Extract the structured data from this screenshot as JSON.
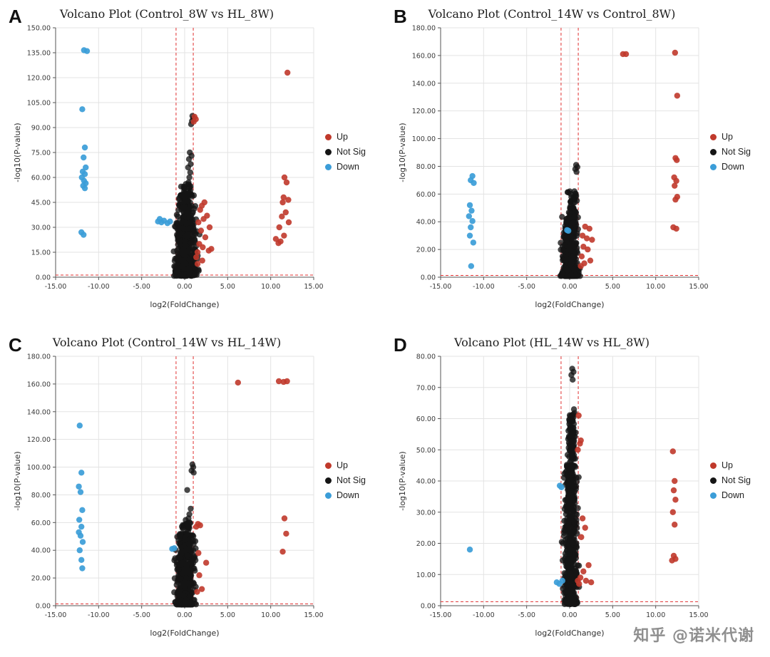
{
  "watermark": {
    "text": "知乎 @诺米代谢"
  },
  "colors": {
    "up": "#c0392b",
    "not_sig": "#151515",
    "down": "#3b9dd8",
    "threshold": "#e03131",
    "grid": "#e3e3e3",
    "axis": "#555555"
  },
  "legend": {
    "items": [
      {
        "label": "Up",
        "color": "#c0392b"
      },
      {
        "label": "Not Sig",
        "color": "#151515"
      },
      {
        "label": "Down",
        "color": "#3b9dd8"
      }
    ]
  },
  "chart_data": {
    "type": "scatter",
    "note": "four volcano plots, see panels"
  },
  "panels": [
    {
      "id": "A",
      "title": "Volcano Plot (Control_8W vs HL_8W)",
      "xlabel": "log2(FoldChange)",
      "ylabel": "-log10(P-value)",
      "xlim": [
        -15,
        15
      ],
      "ylim": [
        0,
        150
      ],
      "xticks": [
        "-15.00",
        "-10.00",
        "-5.00",
        "0.00",
        "5.00",
        "10.00",
        "15.00"
      ],
      "yticks": [
        "0.00",
        "15.00",
        "30.00",
        "45.00",
        "60.00",
        "75.00",
        "90.00",
        "105.00",
        "120.00",
        "135.00",
        "150.00"
      ],
      "thresholds": {
        "x": [
          -1,
          1
        ],
        "y": 1.3
      },
      "points": {
        "down": [
          [
            -11.7,
            136.5
          ],
          [
            -11.35,
            136
          ],
          [
            -11.9,
            101
          ],
          [
            -11.6,
            78
          ],
          [
            -11.75,
            72
          ],
          [
            -11.5,
            66
          ],
          [
            -11.85,
            63.5
          ],
          [
            -11.6,
            62
          ],
          [
            -11.95,
            60
          ],
          [
            -11.7,
            58
          ],
          [
            -11.5,
            56.5
          ],
          [
            -11.8,
            55
          ],
          [
            -11.6,
            53.5
          ],
          [
            -12.0,
            27
          ],
          [
            -11.75,
            25.5
          ],
          [
            -3.1,
            33.5
          ],
          [
            -2.7,
            33
          ],
          [
            -2.4,
            34
          ],
          [
            -2.0,
            32.5
          ],
          [
            -1.7,
            33.5
          ],
          [
            -2.9,
            35
          ]
        ],
        "up": [
          [
            11.95,
            123
          ],
          [
            11.6,
            60
          ],
          [
            11.85,
            57
          ],
          [
            11.5,
            48
          ],
          [
            12.05,
            46.5
          ],
          [
            11.4,
            45
          ],
          [
            11.75,
            39
          ],
          [
            11.3,
            36.5
          ],
          [
            12.1,
            33
          ],
          [
            11.0,
            30
          ],
          [
            11.55,
            25
          ],
          [
            10.6,
            23
          ],
          [
            11.15,
            21.5
          ],
          [
            10.9,
            20.5
          ],
          [
            1.15,
            96.5
          ],
          [
            1.3,
            95
          ],
          [
            1.05,
            93.5
          ],
          [
            2.3,
            45
          ],
          [
            2.0,
            43
          ],
          [
            1.8,
            40.5
          ],
          [
            2.6,
            37
          ],
          [
            2.2,
            35
          ],
          [
            1.6,
            33
          ],
          [
            2.9,
            30
          ],
          [
            1.9,
            28
          ],
          [
            2.4,
            24
          ],
          [
            1.7,
            20
          ],
          [
            2.1,
            18
          ],
          [
            2.8,
            16
          ],
          [
            1.5,
            15
          ],
          [
            3.1,
            17
          ],
          [
            1.35,
            12
          ],
          [
            2.05,
            10
          ],
          [
            1.5,
            8
          ]
        ],
        "not_sig": [
          [
            0.9,
            97
          ],
          [
            1.0,
            95.5
          ],
          [
            0.85,
            94
          ],
          [
            0.75,
            92
          ],
          [
            0.6,
            75
          ],
          [
            0.8,
            73
          ],
          [
            0.5,
            71
          ],
          [
            0.7,
            68
          ],
          [
            0.4,
            66
          ],
          [
            0.65,
            63
          ],
          [
            0.55,
            60
          ],
          [
            0.45,
            57
          ],
          [
            0.6,
            54
          ],
          [
            0.5,
            52
          ],
          [
            0.35,
            50
          ]
        ]
      },
      "clusters": [
        {
          "series": "not_sig",
          "count": 520,
          "x": [
            -1.7,
            2.0
          ],
          "y": [
            0.8,
            50
          ],
          "bias": 1.9,
          "seed": 101
        },
        {
          "series": "not_sig",
          "count": 70,
          "x": [
            -0.8,
            1.2
          ],
          "y": [
            28,
            56
          ],
          "bias": 1.2,
          "seed": 102
        }
      ]
    },
    {
      "id": "B",
      "title": "Volcano Plot (Control_14W vs Control_8W)",
      "xlabel": "log2(FoldChange)",
      "ylabel": "-log10(P-value)",
      "xlim": [
        -15,
        15
      ],
      "ylim": [
        0,
        180
      ],
      "xticks": [
        "-15.00",
        "-10.00",
        "-5.00",
        "0.00",
        "5.00",
        "10.00",
        "15.00"
      ],
      "yticks": [
        "0.00",
        "20.00",
        "40.00",
        "60.00",
        "80.00",
        "100.00",
        "120.00",
        "140.00",
        "160.00",
        "180.00"
      ],
      "thresholds": {
        "x": [
          -1,
          1
        ],
        "y": 1.3
      },
      "points": {
        "down": [
          [
            -11.3,
            73
          ],
          [
            -11.5,
            70
          ],
          [
            -11.15,
            68
          ],
          [
            -11.6,
            52
          ],
          [
            -11.4,
            48
          ],
          [
            -11.7,
            44
          ],
          [
            -11.3,
            40.5
          ],
          [
            -11.5,
            36
          ],
          [
            -11.6,
            30
          ],
          [
            -11.2,
            25
          ],
          [
            -11.45,
            8
          ],
          [
            -0.3,
            34
          ],
          [
            -0.15,
            33.5
          ]
        ],
        "up": [
          [
            6.2,
            161
          ],
          [
            6.55,
            161
          ],
          [
            12.25,
            162
          ],
          [
            12.5,
            131
          ],
          [
            12.3,
            86
          ],
          [
            12.45,
            84.5
          ],
          [
            12.15,
            72
          ],
          [
            12.4,
            69.5
          ],
          [
            12.2,
            66
          ],
          [
            12.5,
            58
          ],
          [
            12.3,
            56
          ],
          [
            12.05,
            36
          ],
          [
            12.4,
            35
          ],
          [
            1.8,
            36.5
          ],
          [
            2.3,
            35
          ],
          [
            1.5,
            30
          ],
          [
            2.0,
            28
          ],
          [
            2.6,
            27
          ],
          [
            1.6,
            22
          ],
          [
            2.1,
            20
          ],
          [
            1.4,
            15
          ],
          [
            2.4,
            12
          ],
          [
            1.7,
            10
          ],
          [
            1.3,
            8
          ]
        ],
        "not_sig": [
          [
            0.75,
            81
          ],
          [
            0.9,
            79.5
          ],
          [
            0.65,
            78
          ],
          [
            0.8,
            76
          ],
          [
            0.55,
            62
          ],
          [
            0.7,
            60
          ],
          [
            0.5,
            57
          ],
          [
            0.6,
            54
          ],
          [
            0.45,
            50
          ],
          [
            0.7,
            47
          ],
          [
            0.55,
            44
          ]
        ]
      },
      "clusters": [
        {
          "series": "not_sig",
          "count": 540,
          "x": [
            -1.2,
            1.3
          ],
          "y": [
            0.8,
            44
          ],
          "bias": 2.0,
          "seed": 202
        },
        {
          "series": "not_sig",
          "count": 80,
          "x": [
            -0.6,
            1.0
          ],
          "y": [
            28,
            62
          ],
          "bias": 1.2,
          "seed": 203
        }
      ]
    },
    {
      "id": "C",
      "title": "Volcano Plot (Control_14W vs HL_14W)",
      "xlabel": "log2(FoldChange)",
      "ylabel": "-log10(P-value)",
      "xlim": [
        -15,
        15
      ],
      "ylim": [
        0,
        180
      ],
      "xticks": [
        "-15.00",
        "-10.00",
        "-5.00",
        "0.00",
        "5.00",
        "10.00",
        "15.00"
      ],
      "yticks": [
        "0.00",
        "20.00",
        "40.00",
        "60.00",
        "80.00",
        "100.00",
        "120.00",
        "140.00",
        "160.00",
        "180.00"
      ],
      "thresholds": {
        "x": [
          -1,
          1
        ],
        "y": 1.3
      },
      "points": {
        "down": [
          [
            -12.2,
            130
          ],
          [
            -12.0,
            96
          ],
          [
            -12.3,
            86
          ],
          [
            -12.1,
            82
          ],
          [
            -11.9,
            69
          ],
          [
            -12.25,
            62
          ],
          [
            -12.0,
            57
          ],
          [
            -12.3,
            53
          ],
          [
            -12.1,
            50.5
          ],
          [
            -11.85,
            46
          ],
          [
            -12.2,
            40
          ],
          [
            -12.0,
            33
          ],
          [
            -11.9,
            27
          ],
          [
            -1.45,
            41
          ],
          [
            -1.2,
            41.5
          ]
        ],
        "up": [
          [
            6.2,
            161
          ],
          [
            10.95,
            162
          ],
          [
            11.5,
            161.5
          ],
          [
            11.9,
            162
          ],
          [
            11.6,
            63
          ],
          [
            11.8,
            52
          ],
          [
            11.4,
            39
          ],
          [
            1.55,
            59
          ],
          [
            1.8,
            58
          ],
          [
            1.35,
            57
          ],
          [
            2.5,
            31
          ],
          [
            1.6,
            38
          ],
          [
            1.7,
            22
          ],
          [
            2.0,
            12
          ],
          [
            1.45,
            10
          ]
        ],
        "not_sig": [
          [
            0.9,
            102
          ],
          [
            1.0,
            100
          ],
          [
            0.8,
            97.5
          ],
          [
            1.05,
            96
          ],
          [
            0.3,
            83.5
          ],
          [
            0.7,
            70
          ],
          [
            0.55,
            66
          ],
          [
            0.45,
            63
          ],
          [
            0.6,
            60
          ],
          [
            0.5,
            57
          ]
        ]
      },
      "clusters": [
        {
          "series": "not_sig",
          "count": 560,
          "x": [
            -1.4,
            1.5
          ],
          "y": [
            0.8,
            52
          ],
          "bias": 2.0,
          "seed": 303
        },
        {
          "series": "not_sig",
          "count": 60,
          "x": [
            -0.7,
            1.1
          ],
          "y": [
            35,
            62
          ],
          "bias": 1.2,
          "seed": 304
        }
      ]
    },
    {
      "id": "D",
      "title": "Volcano Plot (HL_14W vs HL_8W)",
      "xlabel": "log2(FoldChange)",
      "ylabel": "-log10(P-value)",
      "xlim": [
        -15,
        15
      ],
      "ylim": [
        0,
        80
      ],
      "xticks": [
        "-15.00",
        "-10.00",
        "-5.00",
        "0.00",
        "5.00",
        "10.00",
        "15.00"
      ],
      "yticks": [
        "0.00",
        "10.00",
        "20.00",
        "30.00",
        "40.00",
        "50.00",
        "60.00",
        "70.00",
        "80.00"
      ],
      "thresholds": {
        "x": [
          -1,
          1
        ],
        "y": 1.3
      },
      "points": {
        "down": [
          [
            -11.6,
            18
          ],
          [
            -1.15,
            38.5
          ],
          [
            -0.95,
            38
          ],
          [
            -1.5,
            7.5
          ],
          [
            -0.85,
            8
          ],
          [
            -1.2,
            7
          ]
        ],
        "up": [
          [
            1.05,
            61
          ],
          [
            1.3,
            53
          ],
          [
            1.2,
            52
          ],
          [
            0.95,
            50
          ],
          [
            12.0,
            49.5
          ],
          [
            12.2,
            40
          ],
          [
            12.1,
            37
          ],
          [
            12.3,
            34
          ],
          [
            12.0,
            30
          ],
          [
            12.2,
            26
          ],
          [
            12.1,
            16
          ],
          [
            12.3,
            15
          ],
          [
            11.9,
            14.5
          ],
          [
            1.5,
            28
          ],
          [
            1.8,
            25
          ],
          [
            1.35,
            22
          ],
          [
            2.2,
            13
          ],
          [
            1.6,
            11
          ],
          [
            1.25,
            9
          ],
          [
            1.9,
            8
          ],
          [
            2.5,
            7.5
          ],
          [
            0.95,
            8
          ],
          [
            1.1,
            7
          ]
        ],
        "not_sig": [
          [
            0.3,
            76
          ],
          [
            0.45,
            75
          ],
          [
            0.2,
            74
          ],
          [
            0.35,
            72.5
          ],
          [
            0.5,
            63
          ],
          [
            0.4,
            61
          ],
          [
            0.3,
            59
          ],
          [
            0.45,
            57
          ],
          [
            0.25,
            55
          ],
          [
            0.5,
            53
          ],
          [
            0.35,
            51
          ]
        ]
      },
      "clusters": [
        {
          "series": "not_sig",
          "count": 520,
          "x": [
            -1.0,
            1.2
          ],
          "y": [
            0.5,
            45
          ],
          "bias": 1.7,
          "seed": 404
        },
        {
          "series": "not_sig",
          "count": 120,
          "x": [
            -0.5,
            0.9
          ],
          "y": [
            38,
            62
          ],
          "bias": 1.1,
          "seed": 405
        }
      ]
    }
  ]
}
